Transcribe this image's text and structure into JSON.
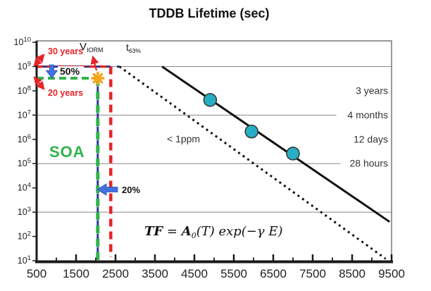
{
  "title": "TDDB Lifetime (sec)",
  "colors": {
    "red": "#e62427",
    "green": "#2fb44b",
    "navy": "#2b3a94",
    "blue_arrow": "#4272dd",
    "blue_arrow_edge": "#2b4fb8",
    "cyan": "#26aec4",
    "orange": "#f7a41d",
    "line": "#111111",
    "grid": "#888888",
    "axis": "#1a1a1a",
    "frame": "#555555",
    "text": "#222222",
    "label": "#333333"
  },
  "chart_data": {
    "type": "line",
    "title": "TDDB Lifetime (sec)",
    "xlabel": "",
    "ylabel": "TDDB Lifetime (sec)",
    "x_axis": {
      "min": 500,
      "max": 9500,
      "labels": [
        500,
        1500,
        2500,
        3500,
        4500,
        5500,
        6500,
        7500,
        8500,
        9500
      ],
      "major_ticks": [
        1500,
        2500,
        3500,
        4500,
        5500,
        6500,
        7500,
        8500,
        9500
      ],
      "minor_ticks": [
        1000,
        2000,
        3000,
        4000,
        5000,
        6000,
        7000,
        8000,
        9000
      ]
    },
    "y_axis": {
      "scale": "log",
      "label_base": "10",
      "tick_exponents": [
        10,
        9,
        8,
        7,
        6,
        5,
        4,
        3,
        2,
        1
      ],
      "range": [
        10,
        10000000000
      ]
    },
    "gridlines_y": [
      {
        "value": 1000000000.0,
        "x_end": 9500
      },
      {
        "value": 10000000.0,
        "x_end": 8100
      },
      {
        "value": 100000.0,
        "x_end": 8200
      },
      {
        "value": 1000.0,
        "x_end": 9500
      }
    ],
    "series": [
      {
        "name": "tddb-fit-line",
        "style": "solid",
        "x1": 3680,
        "y1": 1000000000.0,
        "x2": 9450,
        "y2": 400
      },
      {
        "name": "extrapolated-dotted-line",
        "style": "dotted",
        "x1": 2600,
        "y1": 1000000000.0,
        "x2": 9350,
        "y2": 12
      }
    ],
    "data_points": [
      {
        "x": 4900,
        "y": 42000000.0
      },
      {
        "x": 5950,
        "y": 2100000.0
      },
      {
        "x": 7000,
        "y": 260000.0
      }
    ],
    "reference_lines": [
      {
        "name": "iorm-horizontal-blue-dashed",
        "style": "navy",
        "x1": 500,
        "y1": 1000000000.0,
        "x2": 2600,
        "y2": 1000000000.0
      },
      {
        "name": "iorm-horizontal-red-dashed",
        "style": "red",
        "x1": 500,
        "y1": 1000000000.0,
        "x2": 2380,
        "y2": 1000000000.0
      },
      {
        "name": "soa-horizontal-green-dashed",
        "style": "green",
        "x1": 500,
        "y1": 330000000.0,
        "x2": 2050,
        "y2": 330000000.0
      },
      {
        "name": "soa-vertical-blue-dashed",
        "style": "navyv",
        "x1": 2050,
        "y1": 320000000.0,
        "x2": 2050,
        "y2": 13
      },
      {
        "name": "soa-vertical-green-dashed",
        "style": "greenv",
        "x1": 2050,
        "y1": 330000000.0,
        "x2": 2050,
        "y2": 10.5
      },
      {
        "name": "stress-vertical-red-dashed",
        "style": "redv",
        "x1": 2380,
        "y1": 1000000000.0,
        "x2": 2380,
        "y2": 14
      }
    ],
    "marker": {
      "name": "viorm-operating-point",
      "x": 2050,
      "y": 330000000.0
    },
    "right_labels": [
      {
        "value": 100000000.0,
        "text": "3 years"
      },
      {
        "value": 10000000.0,
        "text": "4 months"
      },
      {
        "value": 1000000.0,
        "text": "12 days"
      },
      {
        "value": 100000.0,
        "text": "28 hours"
      }
    ]
  },
  "annotations": {
    "thirty_years": "30 years",
    "v_main": "V",
    "v_sub": "IORM",
    "t_main": "t",
    "t_sub": "63%",
    "fifty_percent": "50%",
    "twenty_years": "20 years",
    "soa": "SOA",
    "one_ppm": "< 1ppm",
    "twenty_percent": "20%",
    "formula_tf": "TF",
    "formula_eq": " = ",
    "formula_a": "A",
    "formula_sub": "0",
    "formula_rest": "(T) exp(−γ E)"
  }
}
